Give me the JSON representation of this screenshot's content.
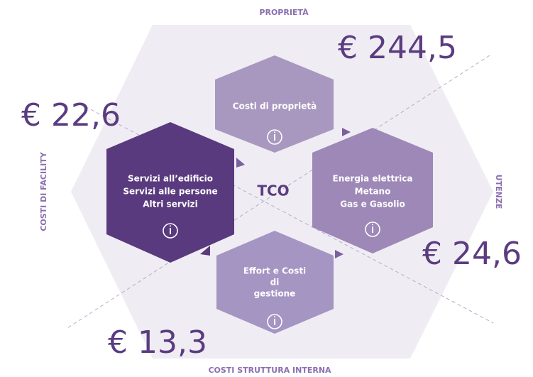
{
  "labels": {
    "top": "PROPRIETÀ",
    "left": "COSTI DI FACILITY",
    "right": "UTENZE",
    "bottom": "COSTI STRUTTURA INTERNA"
  },
  "values": {
    "top": "€ 244,5",
    "left": "€ 22,6",
    "right": "€ 24,6",
    "bottom": "€ 13,3"
  },
  "center": "TCO",
  "hexagons": {
    "top": {
      "lines": [
        "Costi di proprietà"
      ]
    },
    "left": {
      "lines": [
        "Servizi all’edificio",
        "Servizi alle persone",
        "Altri servizi"
      ]
    },
    "right": {
      "lines": [
        "Energia elettrica",
        "Metano",
        "Gas e Gasolio"
      ]
    },
    "bottom": {
      "lines": [
        "Effort e Costi",
        "di",
        "gestione"
      ]
    }
  }
}
